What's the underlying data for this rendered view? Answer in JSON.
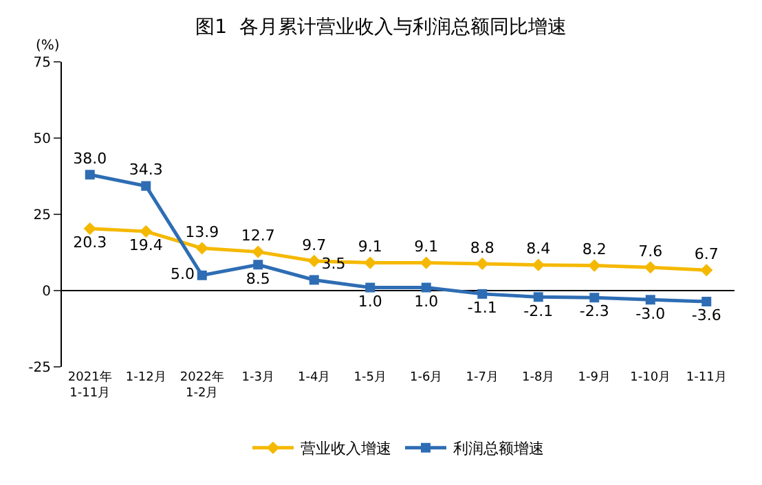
{
  "chart_data": {
    "type": "line",
    "title": "图1  各月累计营业收入与利润总额同比增速",
    "ylabel": "(%)",
    "categories": [
      "2021年\n1-11月",
      "1-12月",
      "2022年\n1-2月",
      "1-3月",
      "1-4月",
      "1-5月",
      "1-6月",
      "1-7月",
      "1-8月",
      "1-9月",
      "1-10月",
      "1-11月"
    ],
    "series": [
      {
        "name": "营业收入增速",
        "color": "#f5b800",
        "marker": "diamond",
        "values": [
          20.3,
          19.4,
          13.9,
          12.7,
          9.7,
          9.1,
          9.1,
          8.8,
          8.4,
          8.2,
          7.6,
          6.7
        ],
        "value_labels": [
          "20.3",
          "19.4",
          "13.9",
          "12.7",
          "9.7",
          "9.1",
          "9.1",
          "8.8",
          "8.4",
          "8.2",
          "7.6",
          "6.7"
        ]
      },
      {
        "name": "利润总额增速",
        "color": "#2e6db4",
        "marker": "square",
        "values": [
          38.0,
          34.3,
          5.0,
          8.5,
          3.5,
          1.0,
          1.0,
          -1.1,
          -2.1,
          -2.3,
          -3.0,
          -3.6
        ],
        "value_labels": [
          "38.0",
          "34.3",
          "5.0",
          "8.5",
          "3.5",
          "1.0",
          "1.0",
          "-1.1",
          "-2.1",
          "-2.3",
          "-3.0",
          "-3.6"
        ]
      }
    ],
    "ylim": [
      -25,
      75
    ],
    "yticks": [
      -25,
      0,
      25,
      50,
      75
    ],
    "legend": "bottom",
    "line_style": "solid"
  }
}
